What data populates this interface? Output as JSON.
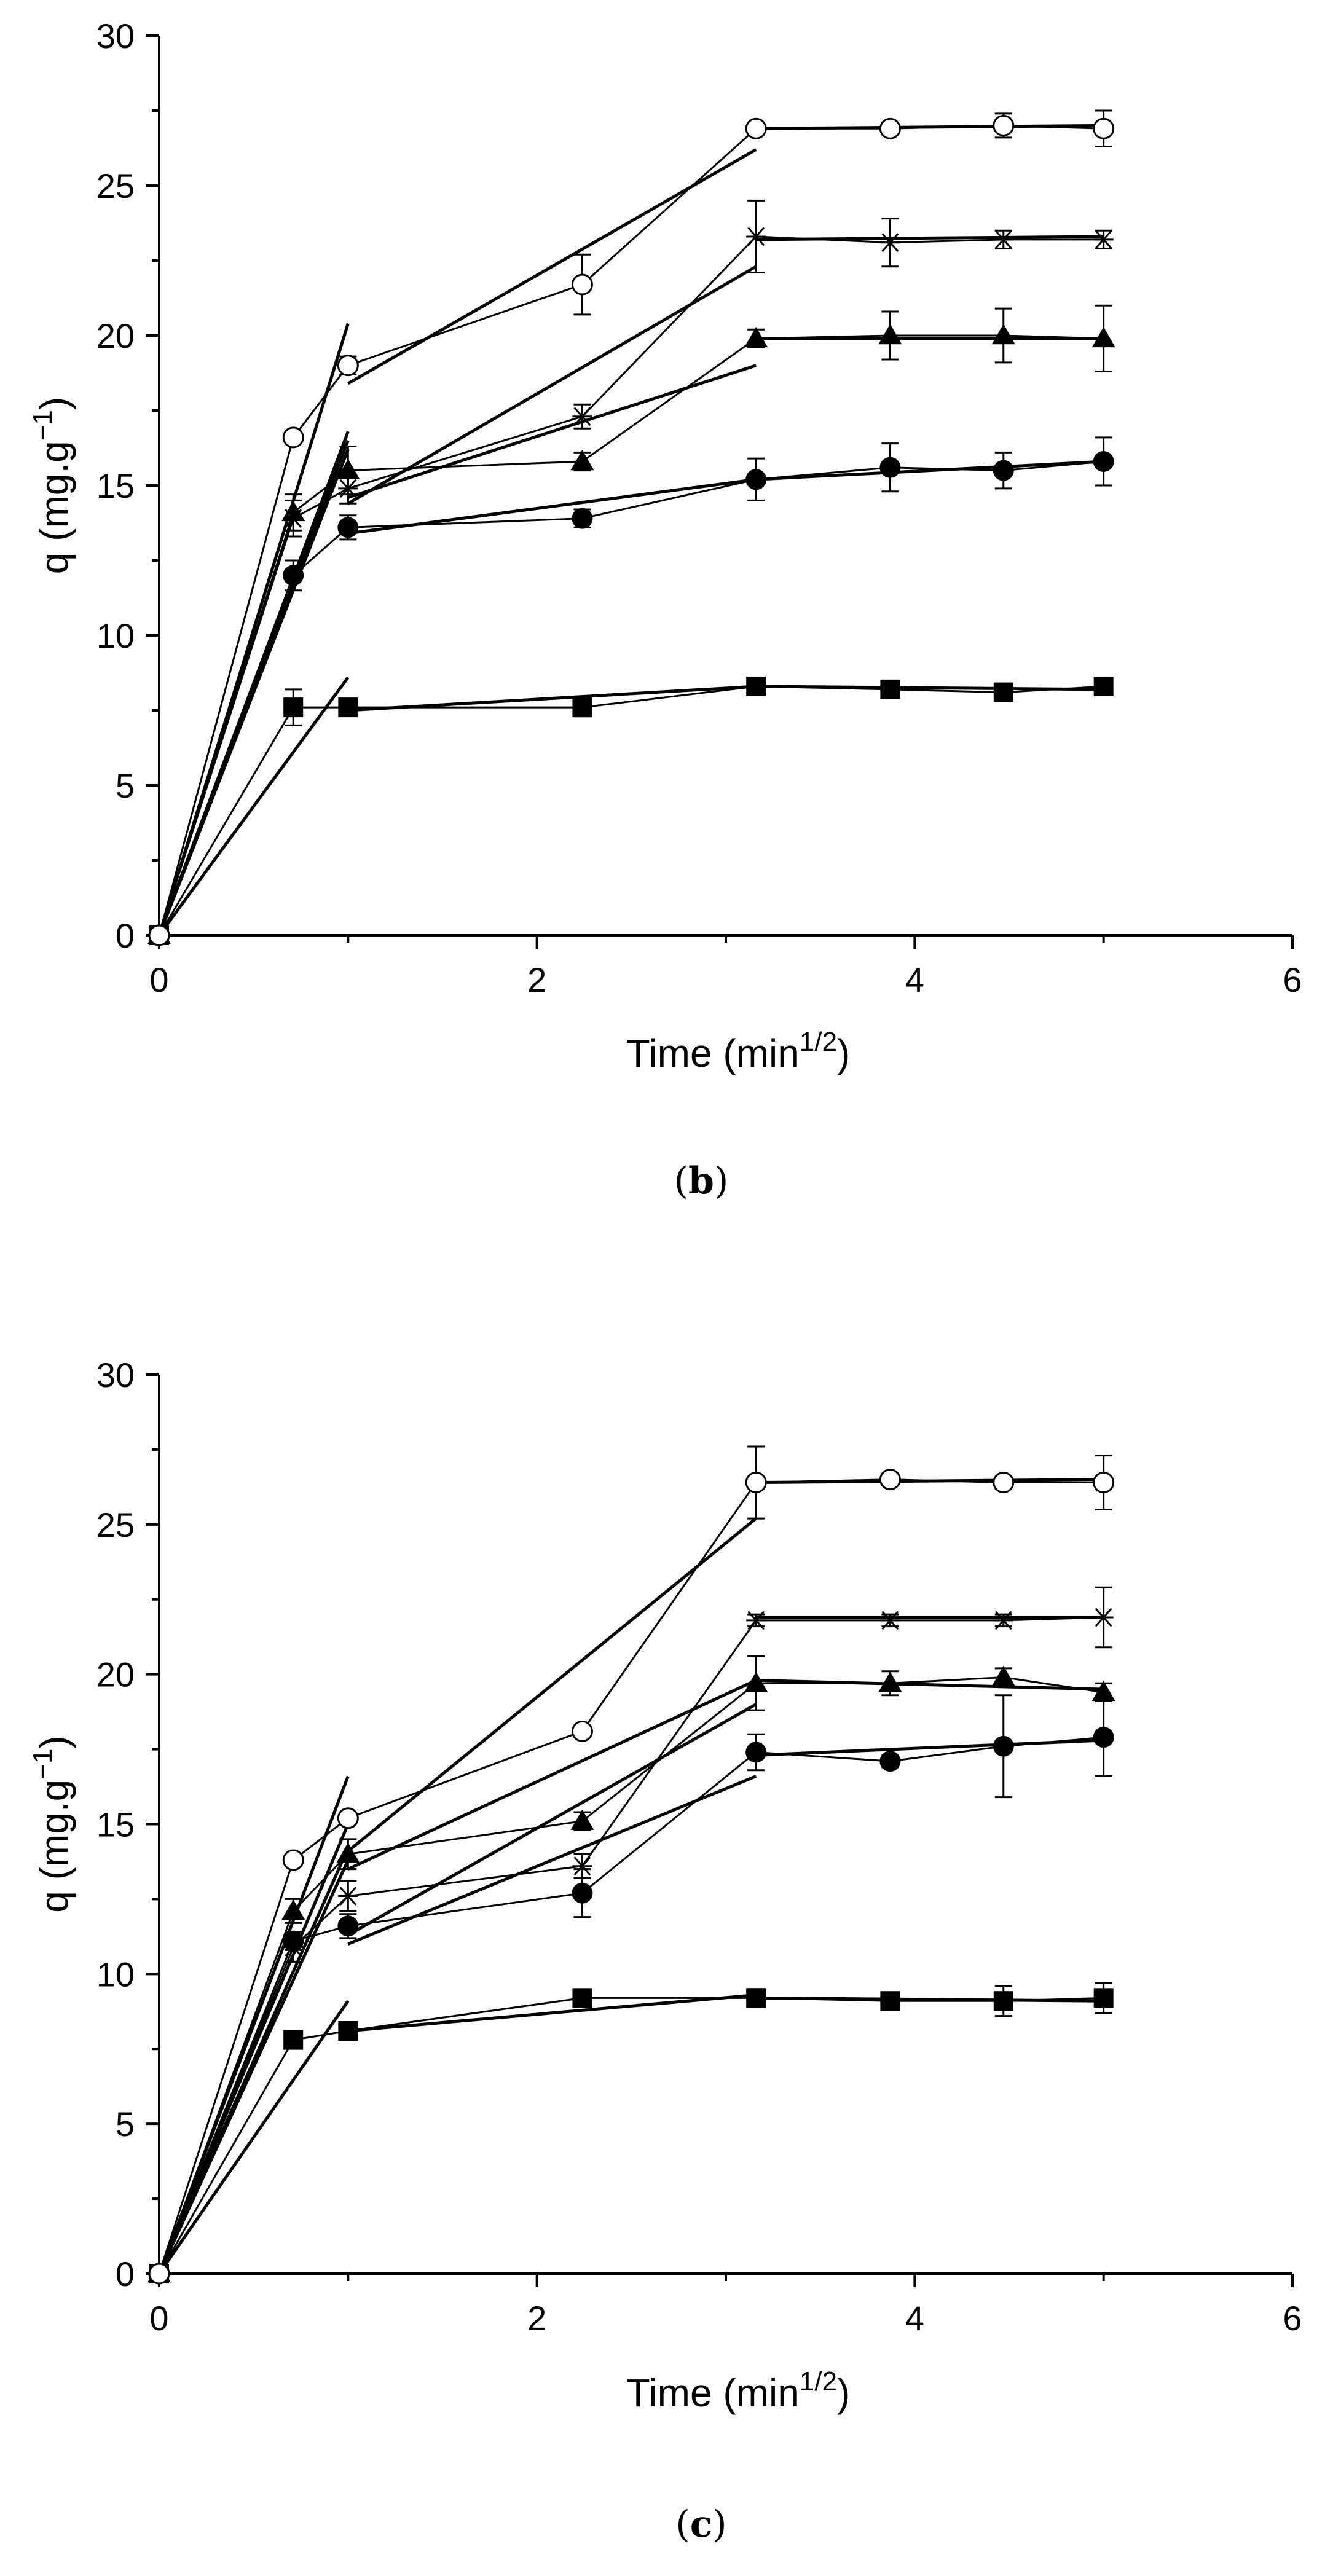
{
  "chart_data": [
    {
      "type": "line",
      "panel_label": "(b)",
      "panel_letter": "b",
      "xlabel": "Time (min",
      "xlabel_sup": "1/2",
      "xlabel_end": ")",
      "ylabel": "q (mg.g",
      "ylabel_sup": "−1",
      "ylabel_end": ")",
      "xlim": [
        0,
        6
      ],
      "ylim": [
        0,
        30
      ],
      "xticks": [
        0,
        2,
        4,
        6
      ],
      "yticks": [
        0,
        5,
        10,
        15,
        20,
        25,
        30
      ],
      "x": [
        0,
        0.71,
        1.0,
        2.24,
        3.16,
        3.87,
        4.47,
        5.0
      ],
      "series": [
        {
          "name": "square",
          "marker": "square",
          "values": [
            0,
            7.6,
            7.6,
            7.6,
            8.3,
            8.2,
            8.1,
            8.3
          ],
          "errors": [
            0,
            0.6,
            0.2,
            0.3,
            0.2,
            0.2,
            0.3,
            0.2
          ]
        },
        {
          "name": "circle",
          "marker": "circle",
          "values": [
            0,
            12.0,
            13.6,
            13.9,
            15.2,
            15.6,
            15.5,
            15.8
          ],
          "errors": [
            0,
            0.5,
            0.4,
            0.3,
            0.7,
            0.8,
            0.6,
            0.8
          ]
        },
        {
          "name": "triangle",
          "marker": "triangle",
          "values": [
            0,
            14.1,
            15.5,
            15.8,
            19.9,
            20.0,
            20.0,
            19.9
          ],
          "errors": [
            0,
            0.6,
            0.8,
            0.3,
            0.3,
            0.8,
            0.9,
            1.1
          ]
        },
        {
          "name": "star",
          "marker": "star",
          "values": [
            0,
            13.9,
            14.9,
            17.3,
            23.3,
            23.1,
            23.2,
            23.2
          ],
          "errors": [
            0,
            0.6,
            0.5,
            0.4,
            1.2,
            0.8,
            0.3,
            0.3
          ]
        },
        {
          "name": "open-circle",
          "marker": "open-circle",
          "values": [
            0,
            16.6,
            19.0,
            21.7,
            26.9,
            26.9,
            27.0,
            26.9
          ],
          "errors": [
            0,
            0.2,
            0.3,
            1.0,
            0.2,
            0.2,
            0.4,
            0.6
          ]
        }
      ],
      "fit_lines": [
        {
          "name": "fit-1-seg1",
          "points": [
            [
              0,
              0
            ],
            [
              1.0,
              8.6
            ]
          ]
        },
        {
          "name": "fit-1-seg2",
          "points": [
            [
              1.0,
              7.5
            ],
            [
              3.16,
              8.3
            ]
          ]
        },
        {
          "name": "fit-1-seg3",
          "points": [
            [
              3.16,
              8.3
            ],
            [
              5.0,
              8.2
            ]
          ]
        },
        {
          "name": "fit-2-seg1",
          "points": [
            [
              0,
              0
            ],
            [
              1.0,
              16.8
            ]
          ]
        },
        {
          "name": "fit-2-seg2",
          "points": [
            [
              1.0,
              13.4
            ],
            [
              3.16,
              15.2
            ]
          ]
        },
        {
          "name": "fit-2-seg3",
          "points": [
            [
              3.16,
              15.2
            ],
            [
              5.0,
              15.8
            ]
          ]
        },
        {
          "name": "fit-3-seg1",
          "points": [
            [
              0,
              0
            ],
            [
              1.0,
              16.5
            ]
          ]
        },
        {
          "name": "fit-3-seg2",
          "points": [
            [
              1.0,
              14.6
            ],
            [
              3.16,
              19.0
            ]
          ]
        },
        {
          "name": "fit-3-seg3",
          "points": [
            [
              3.16,
              19.9
            ],
            [
              5.0,
              19.9
            ]
          ]
        },
        {
          "name": "fit-4-seg1",
          "points": [
            [
              0,
              0
            ],
            [
              1.0,
              16.2
            ]
          ]
        },
        {
          "name": "fit-4-seg2",
          "points": [
            [
              1.0,
              14.4
            ],
            [
              3.16,
              22.3
            ]
          ]
        },
        {
          "name": "fit-4-seg3",
          "points": [
            [
              3.16,
              23.2
            ],
            [
              5.0,
              23.3
            ]
          ]
        },
        {
          "name": "fit-5-seg1",
          "points": [
            [
              0,
              0
            ],
            [
              1.0,
              20.4
            ]
          ]
        },
        {
          "name": "fit-5-seg2",
          "points": [
            [
              1.0,
              18.4
            ],
            [
              3.16,
              26.2
            ]
          ]
        },
        {
          "name": "fit-5-seg3",
          "points": [
            [
              3.16,
              26.9
            ],
            [
              5.0,
              27.0
            ]
          ]
        }
      ]
    },
    {
      "type": "line",
      "panel_label": "(c)",
      "panel_letter": "c",
      "xlabel": "Time (min",
      "xlabel_sup": "1/2",
      "xlabel_end": ")",
      "ylabel": "q (mg.g",
      "ylabel_sup": "−1",
      "ylabel_end": ")",
      "xlim": [
        0,
        6
      ],
      "ylim": [
        0,
        30
      ],
      "xticks": [
        0,
        2,
        4,
        6
      ],
      "yticks": [
        0,
        5,
        10,
        15,
        20,
        25,
        30
      ],
      "x": [
        0,
        0.71,
        1.0,
        2.24,
        3.16,
        3.87,
        4.47,
        5.0
      ],
      "series": [
        {
          "name": "square",
          "marker": "square",
          "values": [
            0,
            7.8,
            8.1,
            9.2,
            9.2,
            9.1,
            9.1,
            9.2
          ],
          "errors": [
            0,
            0.2,
            0.2,
            0.2,
            0.3,
            0.2,
            0.5,
            0.5
          ]
        },
        {
          "name": "circle",
          "marker": "circle",
          "values": [
            0,
            11.1,
            11.6,
            12.7,
            17.4,
            17.1,
            17.6,
            17.9
          ],
          "errors": [
            0,
            0.3,
            0.4,
            0.8,
            0.6,
            0.2,
            1.7,
            1.3
          ]
        },
        {
          "name": "triangle",
          "marker": "triangle",
          "values": [
            0,
            12.1,
            14.0,
            15.1,
            19.7,
            19.7,
            19.9,
            19.4
          ],
          "errors": [
            0,
            0.4,
            0.5,
            0.3,
            0.9,
            0.4,
            0.3,
            0.3
          ]
        },
        {
          "name": "star",
          "marker": "star",
          "values": [
            0,
            10.9,
            12.6,
            13.6,
            21.8,
            21.8,
            21.8,
            21.9
          ],
          "errors": [
            0,
            0.5,
            0.5,
            0.4,
            0.2,
            0.2,
            0.2,
            1.0
          ]
        },
        {
          "name": "open-circle",
          "marker": "open-circle",
          "values": [
            0,
            13.8,
            15.2,
            18.1,
            26.4,
            26.5,
            26.4,
            26.4
          ],
          "errors": [
            0,
            0.2,
            0.2,
            0.2,
            1.2,
            0.2,
            0.2,
            0.9
          ]
        }
      ],
      "fit_lines": [
        {
          "name": "fit-1-seg1",
          "points": [
            [
              0,
              0
            ],
            [
              1.0,
              9.1
            ]
          ]
        },
        {
          "name": "fit-1-seg2",
          "points": [
            [
              1.0,
              8.1
            ],
            [
              3.16,
              9.3
            ]
          ]
        },
        {
          "name": "fit-1-seg3",
          "points": [
            [
              3.16,
              9.2
            ],
            [
              5.0,
              9.1
            ]
          ]
        },
        {
          "name": "fit-2-seg1",
          "points": [
            [
              0,
              0
            ],
            [
              1.0,
              13.8
            ]
          ]
        },
        {
          "name": "fit-2-seg2",
          "points": [
            [
              1.0,
              11.0
            ],
            [
              3.16,
              16.6
            ]
          ]
        },
        {
          "name": "fit-2-seg3",
          "points": [
            [
              3.16,
              17.3
            ],
            [
              5.0,
              17.8
            ]
          ]
        },
        {
          "name": "fit-3-seg1",
          "points": [
            [
              0,
              0
            ],
            [
              1.0,
              15.0
            ]
          ]
        },
        {
          "name": "fit-3-seg2",
          "points": [
            [
              1.0,
              13.5
            ],
            [
              3.16,
              19.8
            ]
          ]
        },
        {
          "name": "fit-3-seg3",
          "points": [
            [
              3.16,
              19.8
            ],
            [
              5.0,
              19.5
            ]
          ]
        },
        {
          "name": "fit-4-seg1",
          "points": [
            [
              0,
              0
            ],
            [
              1.0,
              14.2
            ]
          ]
        },
        {
          "name": "fit-4-seg2",
          "points": [
            [
              1.0,
              11.3
            ],
            [
              3.16,
              19.0
            ]
          ]
        },
        {
          "name": "fit-4-seg3",
          "points": [
            [
              3.16,
              21.9
            ],
            [
              5.0,
              21.9
            ]
          ]
        },
        {
          "name": "fit-5-seg1",
          "points": [
            [
              0,
              0
            ],
            [
              1.0,
              16.6
            ]
          ]
        },
        {
          "name": "fit-5-seg2",
          "points": [
            [
              1.0,
              14.1
            ],
            [
              3.16,
              25.2
            ]
          ]
        },
        {
          "name": "fit-5-seg3",
          "points": [
            [
              3.16,
              26.4
            ],
            [
              5.0,
              26.5
            ]
          ]
        }
      ]
    }
  ]
}
